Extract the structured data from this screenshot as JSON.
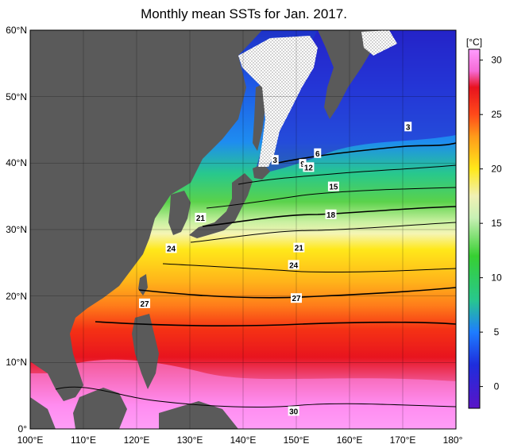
{
  "title": "Monthly mean SSTs for Jan. 2017.",
  "colorbar": {
    "unit_label": "[°C]",
    "tick_values": [
      30,
      25,
      20,
      15,
      10,
      5,
      0
    ],
    "tick_labels": [
      "30",
      "25",
      "20",
      "15",
      "10",
      "5",
      "0"
    ],
    "stops": [
      {
        "value": 31,
        "color": "#ff9cff"
      },
      {
        "value": 29,
        "color": "#f56ad6"
      },
      {
        "value": 27.5,
        "color": "#e8121e"
      },
      {
        "value": 25,
        "color": "#ff4a1a"
      },
      {
        "value": 23,
        "color": "#ff9a1a"
      },
      {
        "value": 20,
        "color": "#ffe81a"
      },
      {
        "value": 17.5,
        "color": "#f0f0b4"
      },
      {
        "value": 15.5,
        "color": "#c8f0b4"
      },
      {
        "value": 12,
        "color": "#37d032"
      },
      {
        "value": 8,
        "color": "#28c88c"
      },
      {
        "value": 5,
        "color": "#1e7dff"
      },
      {
        "value": 2,
        "color": "#1e2ddc"
      },
      {
        "value": -2,
        "color": "#5a14c8"
      }
    ]
  },
  "axes": {
    "lon_labels": [
      "100°E",
      "110°E",
      "120°E",
      "130°E",
      "140°E",
      "150°E",
      "160°E",
      "170°E",
      "180°"
    ],
    "lat_labels": [
      "60°N",
      "50°N",
      "40°N",
      "30°N",
      "20°N",
      "10°N",
      "0°"
    ]
  },
  "contour_labels": [
    {
      "text": "3",
      "lon": 171,
      "lat": 45.5
    },
    {
      "text": "6",
      "lon": 154,
      "lat": 41.5
    },
    {
      "text": "3",
      "lon": 146,
      "lat": 40.5
    },
    {
      "text": "9",
      "lon": 151.2,
      "lat": 39.9
    },
    {
      "text": "12",
      "lon": 152.3,
      "lat": 39.4
    },
    {
      "text": "15",
      "lon": 157,
      "lat": 36.5
    },
    {
      "text": "18",
      "lon": 156.5,
      "lat": 32.3
    },
    {
      "text": "21",
      "lon": 132,
      "lat": 31.8
    },
    {
      "text": "24",
      "lon": 126.5,
      "lat": 27.2
    },
    {
      "text": "21",
      "lon": 150.5,
      "lat": 27.3
    },
    {
      "text": "24",
      "lon": 149.5,
      "lat": 24.7
    },
    {
      "text": "27",
      "lon": 150,
      "lat": 19.7
    },
    {
      "text": "27",
      "lon": 121.5,
      "lat": 18.9
    },
    {
      "text": "30",
      "lon": 149.5,
      "lat": 2.7
    }
  ],
  "colors": {
    "land": "#5a5a5a",
    "sea_ice": "#ffffff",
    "grid": "#000000",
    "contour": "#000000"
  }
}
